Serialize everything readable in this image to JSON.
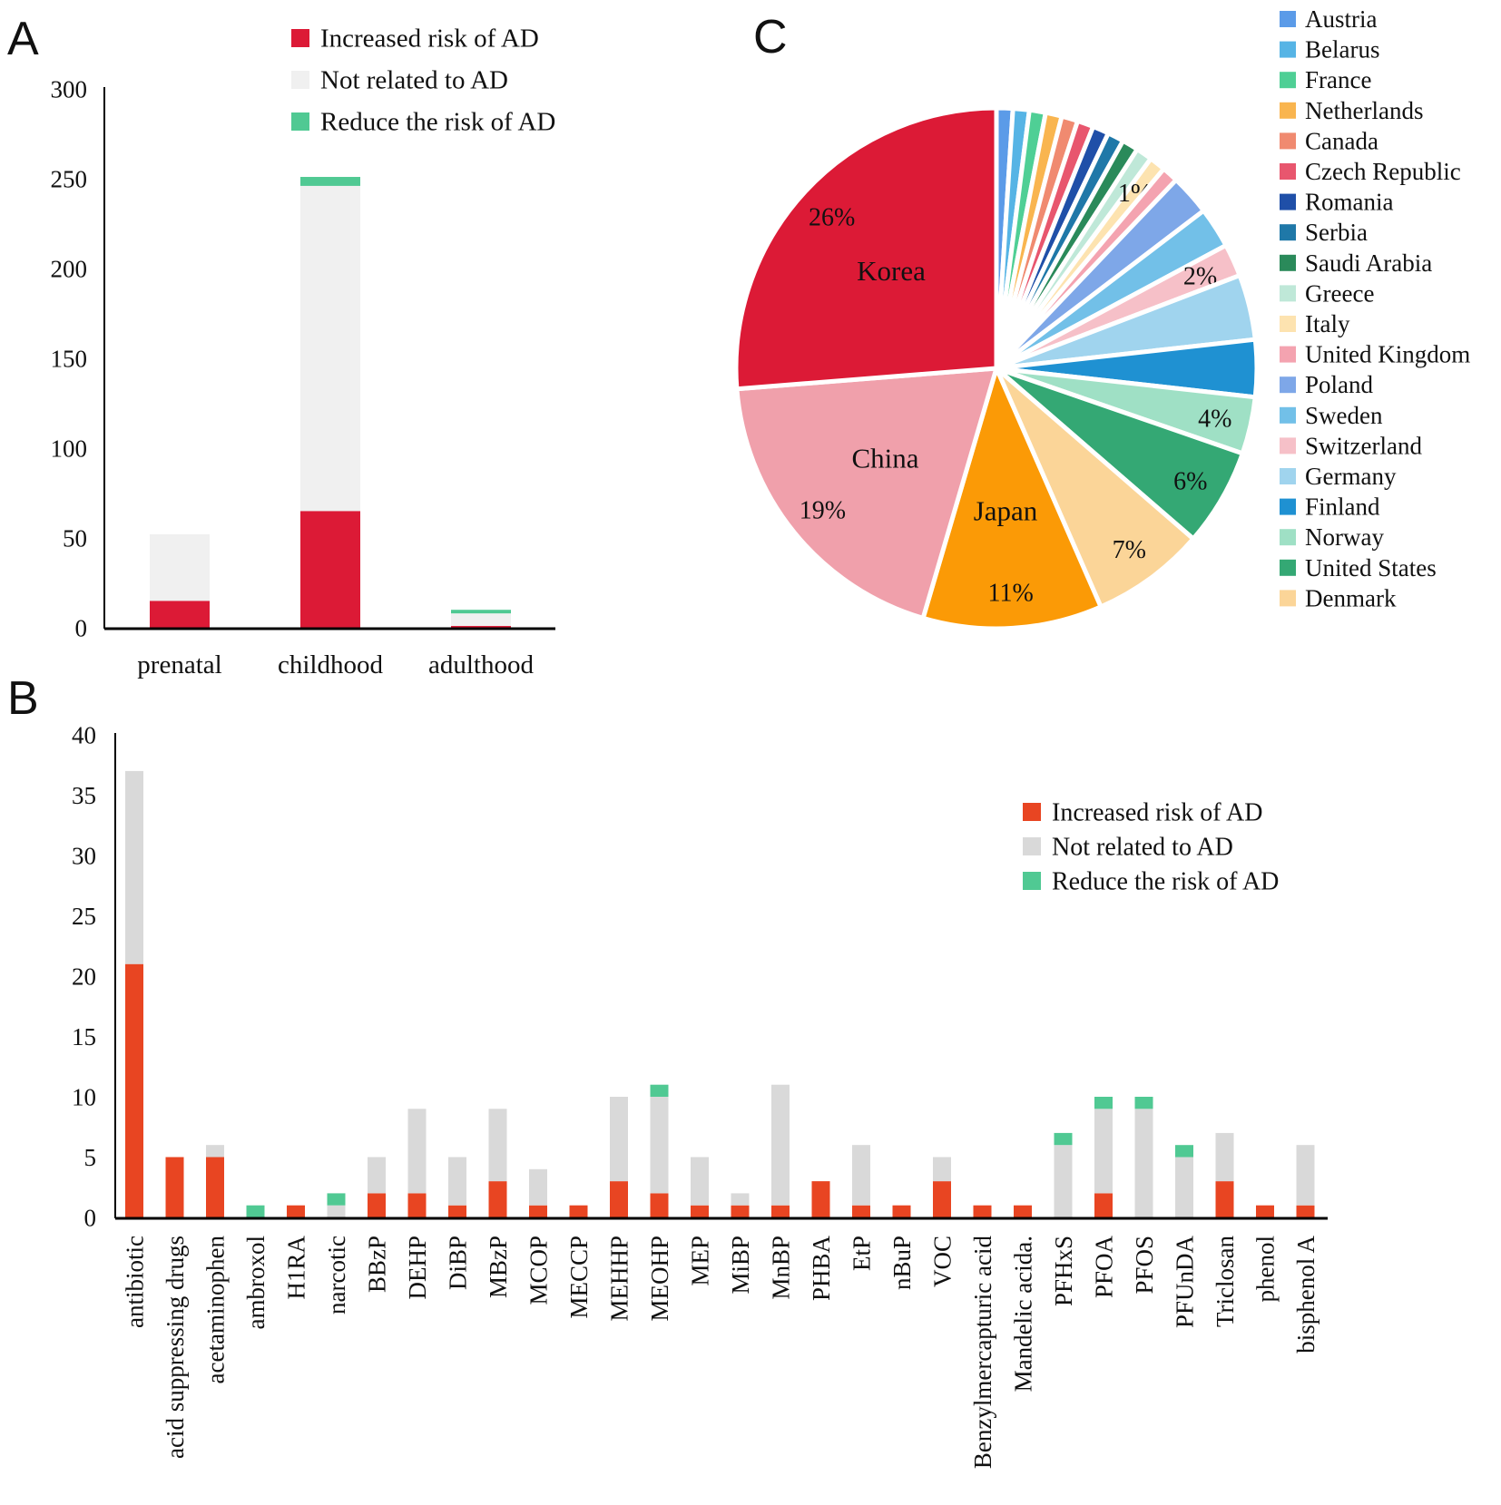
{
  "chart_data": [
    {
      "panel": "A",
      "type": "bar",
      "stacked": true,
      "categories": [
        "prenatal",
        "childhood",
        "adulthood"
      ],
      "series": [
        {
          "name": "Increased risk of AD",
          "color": "#dc1a36",
          "values": [
            15,
            65,
            1
          ]
        },
        {
          "name": "Not related to AD",
          "color": "#f0f0f0",
          "values": [
            37,
            181,
            7
          ]
        },
        {
          "name": "Reduce the risk of AD",
          "color": "#50c993",
          "values": [
            0,
            5,
            2
          ]
        }
      ],
      "ylim": [
        0,
        300
      ],
      "yticks": [
        "0",
        "50",
        "100",
        "150",
        "200",
        "250",
        "300"
      ],
      "legend": "top-right"
    },
    {
      "panel": "B",
      "type": "bar",
      "stacked": true,
      "categories": [
        "antibiotic",
        "acid suppressing drugs",
        "acetaminophen",
        "ambroxol",
        "H1RA",
        "narcotic",
        "BBzP",
        "DEHP",
        "DiBP",
        "MBzP",
        "MCOP",
        "MECCP",
        "MEHHP",
        "MEOHP",
        "MEP",
        "MiBP",
        "MnBP",
        "PHBA",
        "EtP",
        "nBuP",
        "VOC",
        "Benzylmercapturic acid",
        "Mandelic acida.",
        "PFHxS",
        "PFOA",
        "PFOS",
        "PFUnDA",
        "Triclosan",
        "phenol",
        "bisphenol A"
      ],
      "series": [
        {
          "name": "Increased risk of AD",
          "color": "#e84522",
          "values": [
            21,
            5,
            5,
            0,
            1,
            0,
            2,
            2,
            1,
            3,
            1,
            1,
            3,
            2,
            1,
            1,
            1,
            3,
            1,
            1,
            3,
            1,
            1,
            0,
            2,
            0,
            0,
            3,
            1,
            1
          ]
        },
        {
          "name": "Not related to AD",
          "color": "#d9d9d9",
          "values": [
            16,
            0,
            1,
            0,
            0,
            1,
            3,
            7,
            4,
            6,
            3,
            0,
            7,
            8,
            4,
            1,
            10,
            0,
            5,
            0,
            2,
            0,
            0,
            6,
            7,
            9,
            5,
            4,
            0,
            5
          ]
        },
        {
          "name": "Reduce the risk of AD",
          "color": "#50c993",
          "values": [
            0,
            0,
            0,
            1,
            0,
            1,
            0,
            0,
            0,
            0,
            0,
            0,
            0,
            1,
            0,
            0,
            0,
            0,
            0,
            0,
            0,
            0,
            0,
            1,
            1,
            1,
            1,
            0,
            0,
            0
          ]
        }
      ],
      "ylim": [
        0,
        40
      ],
      "yticks": [
        "0",
        "5",
        "10",
        "15",
        "20",
        "25",
        "30",
        "35",
        "40"
      ],
      "legend": "right"
    },
    {
      "panel": "C",
      "type": "pie",
      "slices": [
        {
          "name": "Austria",
          "value": 1,
          "color": "#5b9be8",
          "label": ""
        },
        {
          "name": "Belarus",
          "value": 1,
          "color": "#56b4e5",
          "label": ""
        },
        {
          "name": "France",
          "value": 1,
          "color": "#4fcf95",
          "label": ""
        },
        {
          "name": "Netherlands",
          "value": 1,
          "color": "#f9b54f",
          "label": ""
        },
        {
          "name": "Canada",
          "value": 1,
          "color": "#f08a70",
          "label": ""
        },
        {
          "name": "Czech Republic",
          "value": 1,
          "color": "#e8566e",
          "label": ""
        },
        {
          "name": "Romania",
          "value": 1,
          "color": "#1f4fa8",
          "label": ""
        },
        {
          "name": "Serbia",
          "value": 1,
          "color": "#1f78a8",
          "label": ""
        },
        {
          "name": "Saudi Arabia",
          "value": 1,
          "color": "#2a8a5a",
          "label": ""
        },
        {
          "name": "Greece",
          "value": 1,
          "color": "#bfe8d8",
          "label": ""
        },
        {
          "name": "Italy",
          "value": 1,
          "color": "#fde3b0",
          "label": "1%"
        },
        {
          "name": "United Kingdom",
          "value": 1,
          "color": "#f4a3b0",
          "label": ""
        },
        {
          "name": "Poland",
          "value": 2.5,
          "color": "#7ea7e8",
          "label": ""
        },
        {
          "name": "Sweden",
          "value": 2.5,
          "color": "#72c0e8",
          "label": ""
        },
        {
          "name": "Switzerland",
          "value": 2,
          "color": "#f6c0c8",
          "label": "2%"
        },
        {
          "name": "Germany",
          "value": 4,
          "color": "#a0d4ee",
          "label": ""
        },
        {
          "name": "Finland",
          "value": 3.5,
          "color": "#1f91d2",
          "label": ""
        },
        {
          "name": "Norway",
          "value": 3.5,
          "color": "#9fe0c5",
          "label": "4%"
        },
        {
          "name": "United States",
          "value": 6,
          "color": "#34a874",
          "label": "6%"
        },
        {
          "name": "Denmark",
          "value": 7,
          "color": "#fbd598",
          "label": "7%"
        },
        {
          "name": "Japan",
          "value": 11,
          "color": "#fb9a06",
          "label": "11%"
        },
        {
          "name": "China",
          "value": 19,
          "color": "#f0a0ab",
          "label": "19%"
        },
        {
          "name": "Korea",
          "value": 26,
          "color": "#dc1a36",
          "label": "26%"
        }
      ],
      "legend_entries": [
        "Austria",
        "Belarus",
        "France",
        "Netherlands",
        "Canada",
        "Czech Republic",
        "Romania",
        "Serbia",
        "Saudi Arabia",
        "Greece",
        "Italy",
        "United Kingdom",
        "Poland",
        "Sweden",
        "Switzerland",
        "Germany",
        "Finland",
        "Norway",
        "United States",
        "Denmark"
      ],
      "inside_labels": [
        "Japan",
        "China",
        "Korea"
      ],
      "legend": "right"
    }
  ]
}
